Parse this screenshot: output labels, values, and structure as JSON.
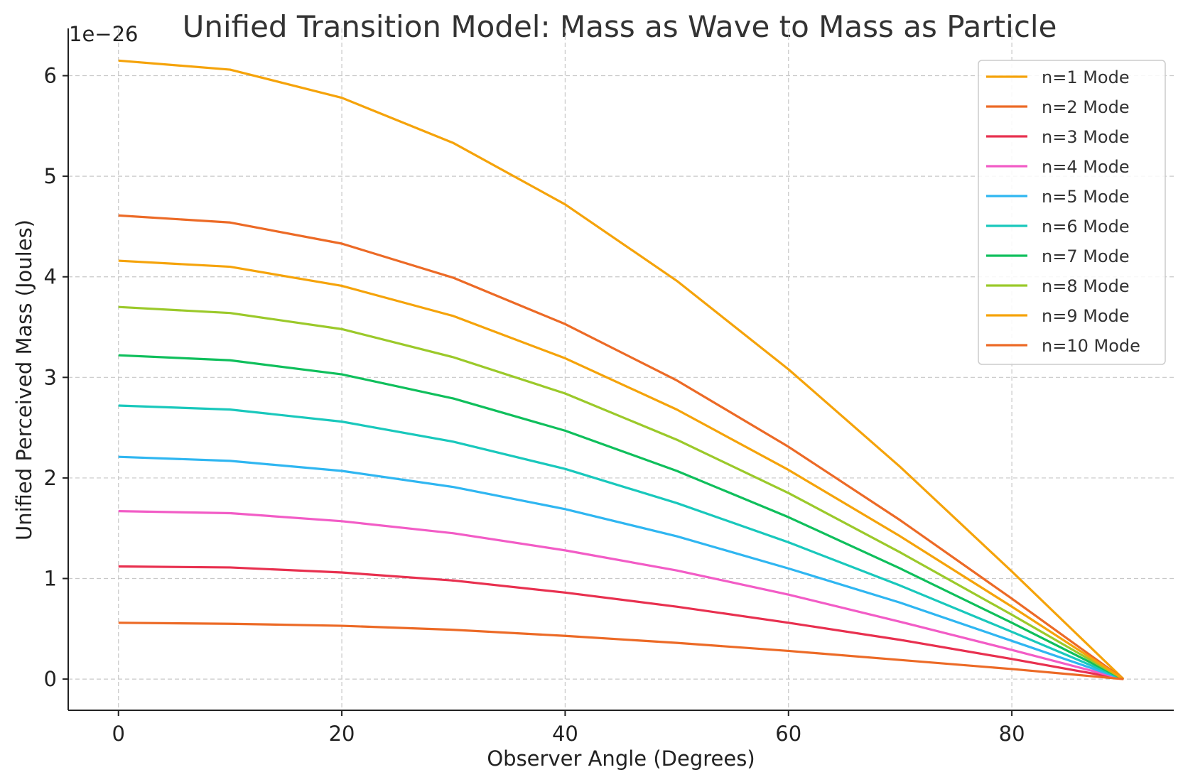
{
  "chart_data": {
    "type": "line",
    "title": "Unified Transition Model: Mass as Wave to Mass as Particle",
    "xlabel": "Observer Angle (Degrees)",
    "ylabel": "Unified Perceived Mass (Joules)",
    "y_offset_label": "1e−26",
    "xlim": [
      -4.5,
      94.5
    ],
    "ylim": [
      -0.31,
      6.47
    ],
    "x_ticks": [
      0,
      20,
      40,
      60,
      80
    ],
    "x_tick_labels": [
      "0",
      "20",
      "40",
      "60",
      "80"
    ],
    "y_ticks": [
      0,
      1,
      2,
      3,
      4,
      5,
      6
    ],
    "y_tick_labels": [
      "0",
      "1",
      "2",
      "3",
      "4",
      "5",
      "6"
    ],
    "grid": true,
    "legend_position": "top-right",
    "x": [
      0,
      10,
      20,
      30,
      40,
      50,
      60,
      70,
      80,
      90
    ],
    "series": [
      {
        "name": "n=1 Mode",
        "color": "#F5A30A",
        "values": [
          6.15,
          6.06,
          5.78,
          5.33,
          4.72,
          3.96,
          3.08,
          2.11,
          1.07,
          0
        ]
      },
      {
        "name": "n=2 Mode",
        "color": "#EC6A26",
        "values": [
          4.61,
          4.54,
          4.33,
          3.99,
          3.53,
          2.97,
          2.31,
          1.58,
          0.8,
          0
        ]
      },
      {
        "name": "n=3 Mode",
        "color": "#E8304F",
        "values": [
          1.12,
          1.11,
          1.06,
          0.98,
          0.86,
          0.72,
          0.56,
          0.39,
          0.2,
          0
        ]
      },
      {
        "name": "n=4 Mode",
        "color": "#F25CC6",
        "values": [
          1.67,
          1.65,
          1.57,
          1.45,
          1.28,
          1.08,
          0.84,
          0.57,
          0.29,
          0
        ]
      },
      {
        "name": "n=5 Mode",
        "color": "#2FB6F1",
        "values": [
          2.21,
          2.17,
          2.07,
          1.91,
          1.69,
          1.42,
          1.1,
          0.76,
          0.38,
          0
        ]
      },
      {
        "name": "n=6 Mode",
        "color": "#19C8BC",
        "values": [
          2.72,
          2.68,
          2.56,
          2.36,
          2.09,
          1.75,
          1.36,
          0.93,
          0.47,
          0
        ]
      },
      {
        "name": "n=7 Mode",
        "color": "#0FBF5C",
        "values": [
          3.22,
          3.17,
          3.03,
          2.79,
          2.47,
          2.07,
          1.61,
          1.1,
          0.56,
          0
        ]
      },
      {
        "name": "n=8 Mode",
        "color": "#9BC92A",
        "values": [
          3.7,
          3.64,
          3.48,
          3.2,
          2.84,
          2.38,
          1.85,
          1.26,
          0.64,
          0
        ]
      },
      {
        "name": "n=9 Mode",
        "color": "#F5A30A",
        "values": [
          4.16,
          4.1,
          3.91,
          3.61,
          3.19,
          2.68,
          2.08,
          1.42,
          0.72,
          0
        ]
      },
      {
        "name": "n=10 Mode",
        "color": "#EC6A26",
        "values": [
          0.56,
          0.55,
          0.53,
          0.49,
          0.43,
          0.36,
          0.28,
          0.19,
          0.1,
          0
        ]
      }
    ]
  }
}
